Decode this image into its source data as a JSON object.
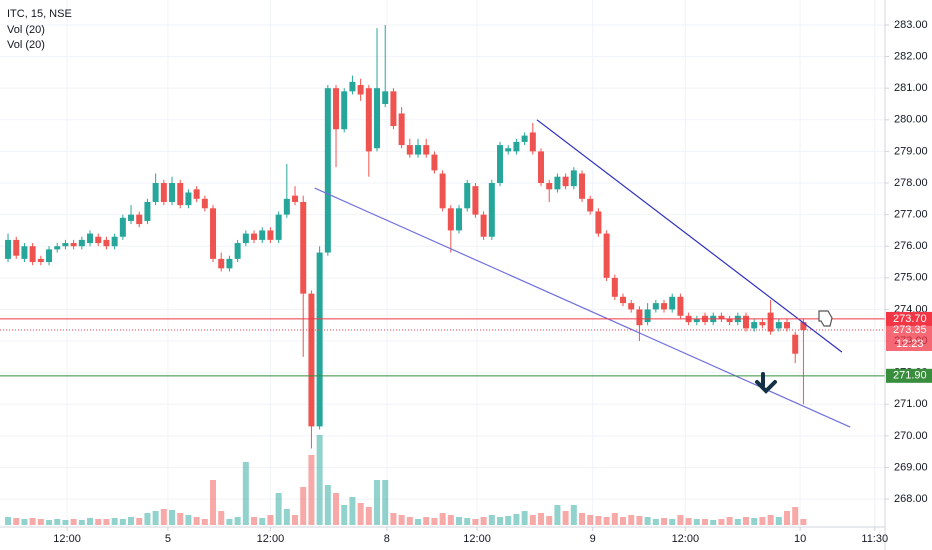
{
  "chart_data": {
    "type": "candlestick",
    "title": "ITC, 15, NSE",
    "indicators": [
      "Vol (20)",
      "Vol (20)"
    ],
    "x": [
      0,
      1,
      2,
      3,
      4,
      5,
      6,
      7,
      8,
      9,
      10,
      11,
      12,
      13,
      14,
      15,
      16,
      17,
      18,
      19,
      20,
      21,
      22,
      23,
      24,
      25,
      26,
      27,
      28,
      29,
      30,
      31,
      32,
      33,
      34,
      35,
      36,
      37,
      38,
      39,
      40,
      41,
      42,
      43,
      44,
      45,
      46,
      47,
      48,
      49,
      50,
      51,
      52,
      53,
      54,
      55,
      56,
      57,
      58,
      59,
      60,
      61,
      62,
      63,
      64,
      65,
      66,
      67,
      68,
      69,
      70,
      71,
      72,
      73,
      74,
      75,
      76,
      77,
      78,
      79,
      80,
      81,
      82,
      83,
      84,
      85,
      86,
      87,
      88,
      89,
      90,
      91,
      92,
      93,
      94,
      95,
      96,
      97
    ],
    "open": [
      275.6,
      276.2,
      275.6,
      276.0,
      275.6,
      275.5,
      275.9,
      276.0,
      276.1,
      276.0,
      276.1,
      276.3,
      276.2,
      276.0,
      276.3,
      276.8,
      277.0,
      276.8,
      277.4,
      278.0,
      277.4,
      278.0,
      277.3,
      277.8,
      277.5,
      277.2,
      275.6,
      275.3,
      275.6,
      276.1,
      276.4,
      276.2,
      276.5,
      276.2,
      277.0,
      277.6,
      277.4,
      274.5,
      270.3,
      275.8,
      281.0,
      279.7,
      280.9,
      281.1,
      281.0,
      279.1,
      280.5,
      280.9,
      280.2,
      279.2,
      278.9,
      279.2,
      278.9,
      278.3,
      277.2,
      276.5,
      277.2,
      277.9,
      277.0,
      276.3,
      278.0,
      279.0,
      279.0,
      279.3,
      279.6,
      279.0,
      278.0,
      277.8,
      278.2,
      277.9,
      278.3,
      277.5,
      277.1,
      276.4,
      275.0,
      274.4,
      274.2,
      274.0,
      273.6,
      274.0,
      274.2,
      274.0,
      274.4,
      273.8,
      273.6,
      273.8,
      273.6,
      273.8,
      273.7,
      273.6,
      273.8,
      273.4,
      273.6,
      273.9,
      273.4,
      273.6,
      273.2,
      273.6
    ],
    "high": [
      276.4,
      276.3,
      276.1,
      276.1,
      275.7,
      276.0,
      276.1,
      276.2,
      276.2,
      276.3,
      276.5,
      276.4,
      276.3,
      276.4,
      277.0,
      277.3,
      277.1,
      277.5,
      278.3,
      278.1,
      278.2,
      278.1,
      277.8,
      277.9,
      277.6,
      277.3,
      275.8,
      275.7,
      276.2,
      276.5,
      276.5,
      276.6,
      276.6,
      277.1,
      278.6,
      277.9,
      277.6,
      274.6,
      276.0,
      281.1,
      281.1,
      281.0,
      281.4,
      281.3,
      281.1,
      282.9,
      283.0,
      281.0,
      280.4,
      279.4,
      279.4,
      279.4,
      279.0,
      278.4,
      277.3,
      277.3,
      278.1,
      278.0,
      277.1,
      278.1,
      279.3,
      279.2,
      279.4,
      279.6,
      279.9,
      279.1,
      278.1,
      278.3,
      278.3,
      278.5,
      278.4,
      277.6,
      277.2,
      276.5,
      275.1,
      274.5,
      274.3,
      274.1,
      274.2,
      274.3,
      274.3,
      274.5,
      274.5,
      273.9,
      273.8,
      273.9,
      273.9,
      273.9,
      273.8,
      273.9,
      273.9,
      273.7,
      273.7,
      274.3,
      273.7,
      273.7,
      273.3,
      273.7
    ],
    "low": [
      275.5,
      275.6,
      275.5,
      275.4,
      275.4,
      275.4,
      275.8,
      275.9,
      275.9,
      275.9,
      276.0,
      276.0,
      275.9,
      275.9,
      276.2,
      276.7,
      276.6,
      276.7,
      277.3,
      277.3,
      277.3,
      277.2,
      277.2,
      277.4,
      277.1,
      275.5,
      275.2,
      275.2,
      275.5,
      276.0,
      276.1,
      276.1,
      276.1,
      276.1,
      276.9,
      277.3,
      272.5,
      269.6,
      270.2,
      275.7,
      278.5,
      279.6,
      280.8,
      280.6,
      278.2,
      279.0,
      280.4,
      279.7,
      279.1,
      278.8,
      278.8,
      278.8,
      278.3,
      277.1,
      275.8,
      276.4,
      277.1,
      276.9,
      276.2,
      276.2,
      277.9,
      278.9,
      278.9,
      279.2,
      278.9,
      277.9,
      277.4,
      277.7,
      277.8,
      277.8,
      277.4,
      277.0,
      276.3,
      274.9,
      274.3,
      274.1,
      273.9,
      273.0,
      273.5,
      273.9,
      273.9,
      273.9,
      273.7,
      273.5,
      273.5,
      273.5,
      273.5,
      273.6,
      273.5,
      273.5,
      273.3,
      273.3,
      273.4,
      273.2,
      273.3,
      273.3,
      272.3,
      271.0
    ],
    "close": [
      276.2,
      275.7,
      276.0,
      275.5,
      275.5,
      275.9,
      276.0,
      276.1,
      276.0,
      276.2,
      276.4,
      276.1,
      276.0,
      276.3,
      276.9,
      277.0,
      276.7,
      277.4,
      278.0,
      277.4,
      278.0,
      277.3,
      277.7,
      277.5,
      277.2,
      275.6,
      275.3,
      275.6,
      276.1,
      276.4,
      276.2,
      276.5,
      276.2,
      277.0,
      277.5,
      277.4,
      274.5,
      270.3,
      275.8,
      281.0,
      279.7,
      280.9,
      281.2,
      280.8,
      279.0,
      281.0,
      280.9,
      279.8,
      279.2,
      278.9,
      279.2,
      278.9,
      278.4,
      277.2,
      276.5,
      277.2,
      278.0,
      277.0,
      276.3,
      278.0,
      279.2,
      279.1,
      279.3,
      279.5,
      279.0,
      278.0,
      277.8,
      278.2,
      277.9,
      278.4,
      277.5,
      277.1,
      276.4,
      275.0,
      274.4,
      274.2,
      274.0,
      273.5,
      274.0,
      274.2,
      274.0,
      274.4,
      273.8,
      273.6,
      273.7,
      273.6,
      273.8,
      273.7,
      273.6,
      273.8,
      273.4,
      273.6,
      273.5,
      273.3,
      273.6,
      273.4,
      272.6,
      273.35
    ],
    "volume": [
      8,
      7,
      6,
      7,
      6,
      5,
      6,
      5,
      6,
      5,
      7,
      6,
      6,
      7,
      6,
      8,
      7,
      12,
      14,
      16,
      15,
      12,
      10,
      8,
      6,
      45,
      14,
      6,
      8,
      63,
      8,
      7,
      10,
      32,
      16,
      10,
      38,
      70,
      90,
      40,
      32,
      20,
      28,
      22,
      18,
      45,
      45,
      12,
      10,
      8,
      6,
      8,
      7,
      12,
      10,
      8,
      7,
      6,
      8,
      10,
      8,
      9,
      11,
      14,
      10,
      12,
      9,
      20,
      14,
      20,
      12,
      10,
      9,
      8,
      12,
      8,
      10,
      9,
      8,
      6,
      7,
      6,
      10,
      7,
      6,
      6,
      5,
      6,
      8,
      6,
      8,
      7,
      8,
      10,
      8,
      14,
      18,
      6
    ],
    "up_color": "#26a69a",
    "down_color": "#ef5350",
    "xlim": [
      -0.98,
      106.95
    ],
    "ylim": [
      267.18,
      283.79
    ],
    "xticks": [
      {
        "value": 7.2,
        "label": "12:00"
      },
      {
        "value": 19.5,
        "label": "5"
      },
      {
        "value": 32,
        "label": "12:00"
      },
      {
        "value": 46.2,
        "label": "8"
      },
      {
        "value": 57.2,
        "label": "12:00"
      },
      {
        "value": 71.3,
        "label": "9"
      },
      {
        "value": 82.6,
        "label": "12:00"
      },
      {
        "value": 96.6,
        "label": "10"
      },
      {
        "value": 105.7,
        "label": "11:30"
      }
    ],
    "yticks": [
      {
        "value": 268,
        "label": "268.00"
      },
      {
        "value": 269,
        "label": "269.00"
      },
      {
        "value": 270,
        "label": "270.00"
      },
      {
        "value": 271,
        "label": "271.00"
      },
      {
        "value": 272,
        "label": "272.00"
      },
      {
        "value": 273,
        "label": "273.00"
      },
      {
        "value": 274,
        "label": "274.00"
      },
      {
        "value": 275,
        "label": "275.00"
      },
      {
        "value": 276,
        "label": "276.00"
      },
      {
        "value": 277,
        "label": "277.00"
      },
      {
        "value": 278,
        "label": "278.00"
      },
      {
        "value": 279,
        "label": "279.00"
      },
      {
        "value": 280,
        "label": "280.00"
      },
      {
        "value": 281,
        "label": "281.00"
      },
      {
        "value": 282,
        "label": "282.00"
      },
      {
        "value": 283,
        "label": "283.00"
      }
    ],
    "grid": true,
    "trendlines": [
      {
        "x": [
          64.5,
          101.7
        ],
        "y": [
          280.0,
          272.65
        ],
        "color": "#3030c0"
      },
      {
        "x": [
          37.4,
          102.7
        ],
        "y": [
          277.84,
          270.28
        ],
        "color": "#7070dc"
      }
    ],
    "levels": [
      {
        "value": 273.7,
        "label": "273.70",
        "color": "#f23645",
        "style": "solid"
      },
      {
        "value": 273.35,
        "label": "273.35",
        "color": "#f23645",
        "style": "dotted"
      },
      {
        "value": 271.9,
        "label": "271.90",
        "color": "#388e3c",
        "style": "solid"
      }
    ],
    "countdown": "12:23"
  }
}
